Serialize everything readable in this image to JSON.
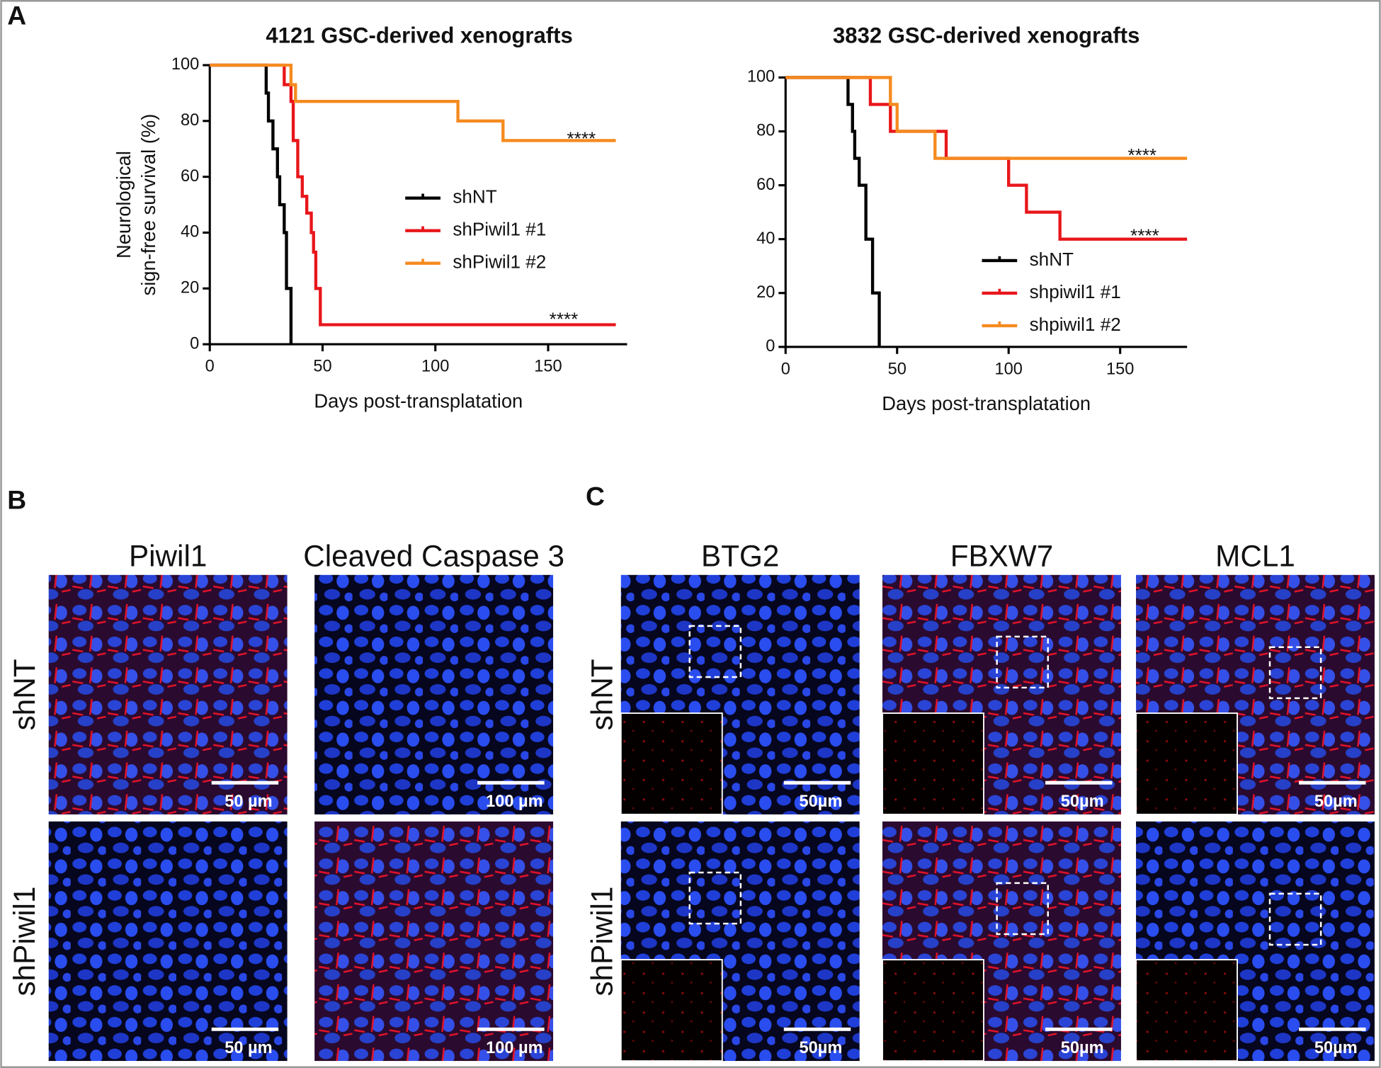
{
  "panel_labels": [
    "A",
    "B",
    "C"
  ],
  "chart_data": [
    {
      "type": "step",
      "title": "4121 GSC-derived xenografts",
      "x_label": "Days post-transplatation",
      "y_label": [
        "Neurological",
        "sign-free survival (%)"
      ],
      "xlim": [
        0,
        185
      ],
      "xticks": [
        0,
        50,
        100,
        150
      ],
      "ylim": [
        0,
        100
      ],
      "yticks": [
        0,
        20,
        40,
        60,
        80,
        100
      ],
      "series": [
        {
          "name": "shNT",
          "color": "#000000",
          "x": [
            0,
            25,
            26,
            28,
            30,
            31,
            33,
            34,
            36
          ],
          "values": [
            100,
            90,
            80,
            70,
            60,
            50,
            40,
            20,
            0
          ]
        },
        {
          "name": "shPiwil1 #1",
          "color": "#e8161b",
          "x": [
            0,
            33,
            36,
            37,
            39,
            41,
            43,
            45,
            46,
            47,
            49,
            180
          ],
          "values": [
            100,
            93,
            87,
            73,
            60,
            53,
            47,
            40,
            33,
            20,
            7,
            7
          ]
        },
        {
          "name": "shPiwil1 #2",
          "color": "#f58a1f",
          "x": [
            0,
            36,
            38,
            110,
            130,
            180
          ],
          "values": [
            100,
            93,
            87,
            80,
            73,
            73
          ]
        }
      ],
      "annotations": [
        "****",
        "****"
      ]
    },
    {
      "type": "step",
      "title": "3832 GSC-derived xenografts",
      "x_label": "Days post-transplatation",
      "xlim": [
        0,
        180
      ],
      "xticks": [
        0,
        50,
        100,
        150
      ],
      "ylim": [
        0,
        100
      ],
      "yticks": [
        0,
        20,
        40,
        60,
        80,
        100
      ],
      "series": [
        {
          "name": "shNT",
          "color": "#000000",
          "x": [
            0,
            28,
            30,
            31,
            33,
            36,
            39,
            42
          ],
          "values": [
            100,
            90,
            80,
            70,
            60,
            40,
            20,
            0
          ]
        },
        {
          "name": "shpiwil1 #1",
          "color": "#e8161b",
          "x": [
            0,
            38,
            47,
            72,
            100,
            108,
            123,
            180
          ],
          "values": [
            100,
            90,
            80,
            70,
            60,
            50,
            40,
            40
          ]
        },
        {
          "name": "shpiwil1 #2",
          "color": "#f58a1f",
          "x": [
            0,
            47,
            50,
            67,
            180
          ],
          "values": [
            100,
            90,
            80,
            70,
            70
          ]
        }
      ],
      "annotations": [
        "****",
        "****"
      ]
    }
  ],
  "panel_b": {
    "columns": [
      "Piwil1",
      "Cleaved Caspase 3"
    ],
    "rows": [
      "shNT",
      "shPiwil1"
    ],
    "scale_bars": [
      [
        "50 µm",
        "100 µm"
      ],
      [
        "50 µm",
        "100 µm"
      ]
    ]
  },
  "panel_c": {
    "columns": [
      "BTG2",
      "FBXW7",
      "MCL1"
    ],
    "rows": [
      "shNT",
      "shPiwil1"
    ],
    "scale_bars": [
      [
        "50µm",
        "50µm",
        "50µm"
      ],
      [
        "50µm",
        "50µm",
        "50µm"
      ]
    ]
  }
}
